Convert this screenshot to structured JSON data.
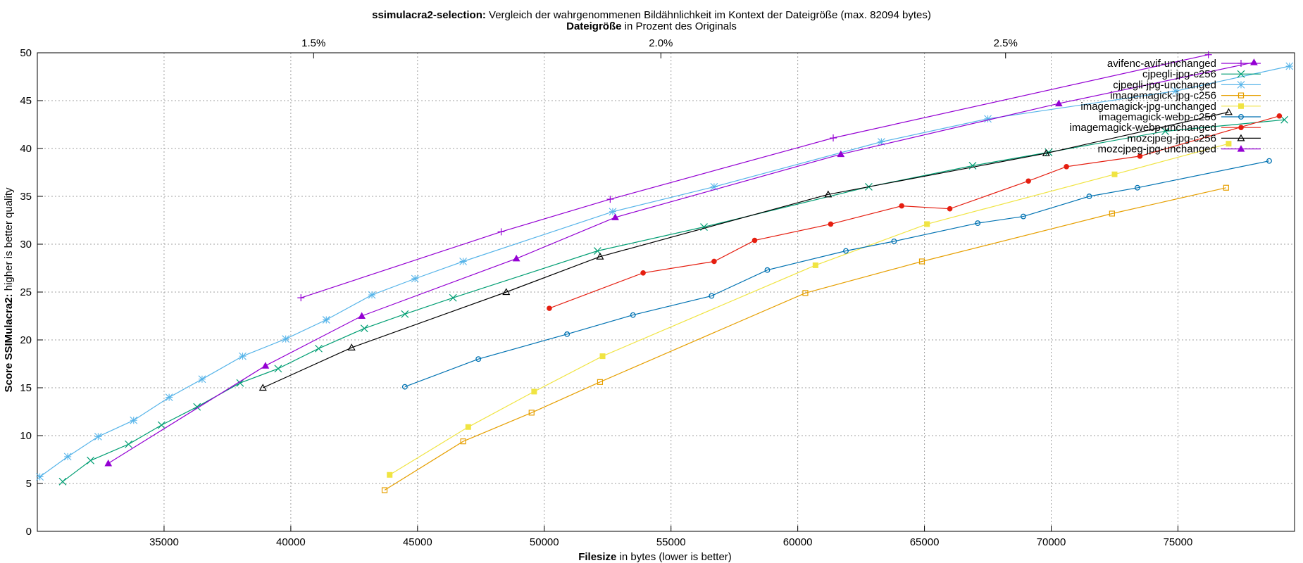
{
  "chart_data": {
    "type": "line",
    "title_bold": "ssimulacra2-selection:",
    "title_rest": " Vergleich der wahrgenommenen Bildähnlichkeit im Kontext der Dateigröße (max. 82094 bytes)",
    "x2label_bold": "Dateigröße",
    "x2label_rest": " in Prozent des Originals",
    "xlabel_bold": "Filesize",
    "xlabel_rest": " in bytes (lower is better)",
    "ylabel_bold": "Score SSIMulacra2:",
    "ylabel_rest": " higher is better quality",
    "xlim": [
      30000,
      79600
    ],
    "ylim": [
      0,
      50
    ],
    "x_ticks": [
      35000,
      40000,
      45000,
      50000,
      55000,
      60000,
      65000,
      70000,
      75000
    ],
    "y_ticks": [
      0,
      5,
      10,
      15,
      20,
      25,
      30,
      35,
      40,
      45,
      50
    ],
    "x2_ticks": [
      {
        "label": "1.5%",
        "value": 40900
      },
      {
        "label": "2.0%",
        "value": 54600
      },
      {
        "label": "2.5%",
        "value": 68200
      }
    ],
    "grid": true,
    "legend_position": "top-right",
    "series": [
      {
        "name": "avifenc-avif-unchanged",
        "color": "#9400d3",
        "marker": "plus",
        "x": [
          40400,
          48300,
          52600,
          61400,
          76200
        ],
        "y": [
          24.4,
          31.3,
          34.7,
          41.1,
          49.8
        ]
      },
      {
        "name": "cjpegli-jpg-c256",
        "color": "#009e73",
        "marker": "x",
        "x": [
          31000,
          32100,
          33600,
          34900,
          36300,
          38000,
          39500,
          41100,
          42900,
          44500,
          46400,
          52100,
          56300,
          62800,
          66900,
          69900,
          74500,
          79200
        ],
        "y": [
          5.2,
          7.4,
          9.1,
          11.1,
          13.0,
          15.5,
          17.0,
          19.1,
          21.2,
          22.7,
          24.4,
          29.3,
          31.8,
          36.0,
          38.2,
          39.6,
          41.8,
          43.0
        ]
      },
      {
        "name": "cjpegli-jpg-unchanged",
        "color": "#56b4e9",
        "marker": "star",
        "x": [
          30100,
          31200,
          32400,
          33800,
          35200,
          36500,
          38100,
          39800,
          41400,
          43200,
          44900,
          46800,
          52700,
          56700,
          63300,
          67500,
          74900,
          79400
        ],
        "y": [
          5.7,
          7.8,
          9.9,
          11.6,
          14.0,
          15.9,
          18.3,
          20.1,
          22.1,
          24.7,
          26.4,
          28.2,
          33.4,
          36.0,
          40.7,
          43.1,
          46.0,
          48.6
        ]
      },
      {
        "name": "imagemagick-jpg-c256",
        "color": "#e69f00",
        "marker": "square",
        "x": [
          43700,
          46800,
          49500,
          52200,
          60300,
          64900,
          72400,
          76900
        ],
        "y": [
          4.3,
          9.4,
          12.4,
          15.6,
          24.9,
          28.2,
          33.2,
          35.9
        ]
      },
      {
        "name": "imagemagick-jpg-unchanged",
        "color": "#f0e442",
        "marker": "filled-square",
        "x": [
          43900,
          47000,
          49600,
          52300,
          60700,
          65100,
          72500,
          77000
        ],
        "y": [
          5.9,
          10.9,
          14.6,
          18.3,
          27.8,
          32.1,
          37.3,
          40.5
        ]
      },
      {
        "name": "imagemagick-webp-c256",
        "color": "#0072b2",
        "marker": "circle",
        "x": [
          44500,
          47400,
          50900,
          53500,
          56600,
          58800,
          61900,
          63800,
          67100,
          68900,
          71500,
          73400,
          78600
        ],
        "y": [
          15.1,
          18.0,
          20.6,
          22.6,
          24.6,
          27.3,
          29.3,
          30.3,
          32.2,
          32.9,
          35.0,
          35.9,
          38.7
        ]
      },
      {
        "name": "imagemagick-webp-unchanged",
        "color": "#e51e10",
        "marker": "dot",
        "x": [
          50200,
          53900,
          56700,
          58300,
          61300,
          64100,
          66000,
          69100,
          70600,
          73500,
          79000
        ],
        "y": [
          23.3,
          27.0,
          28.2,
          30.4,
          32.1,
          34.0,
          33.7,
          36.6,
          38.1,
          39.2,
          43.4
        ]
      },
      {
        "name": "mozcjpeg-jpg-c256",
        "color": "#000000",
        "marker": "triangle",
        "x": [
          38900,
          42400,
          48500,
          52200,
          61200,
          69800,
          77000
        ],
        "y": [
          15.0,
          19.2,
          25.0,
          28.7,
          35.2,
          39.5,
          43.8
        ]
      },
      {
        "name": "mozcjpeg-jpg-unchanged",
        "color": "#9400d3",
        "marker": "filled-triangle",
        "x": [
          32800,
          39000,
          42800,
          48900,
          52800,
          61700,
          70300,
          78000
        ],
        "y": [
          7.1,
          17.3,
          22.5,
          28.5,
          32.8,
          39.4,
          44.7,
          49.0
        ]
      }
    ]
  }
}
